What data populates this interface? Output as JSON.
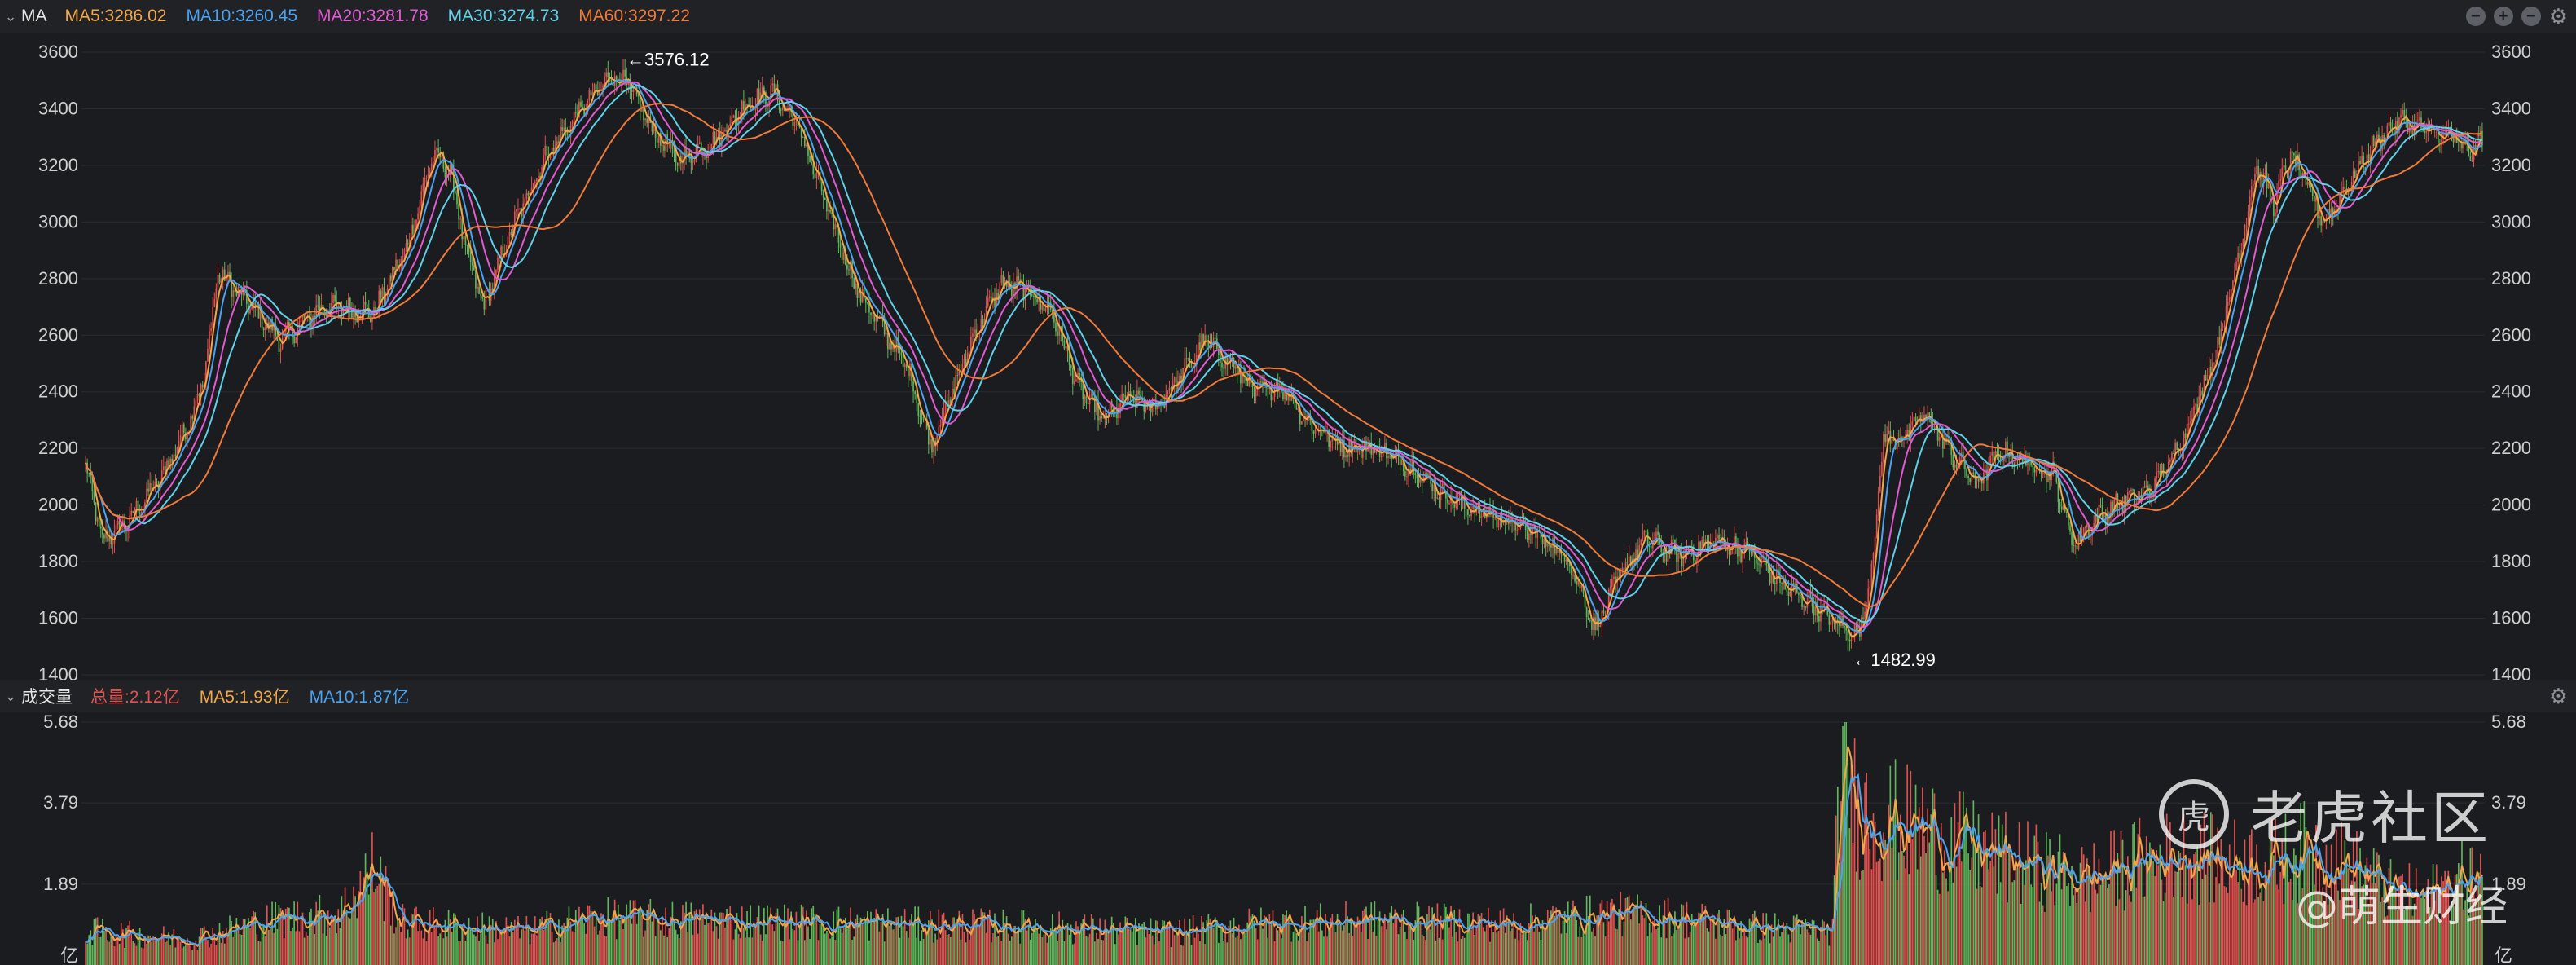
{
  "price_panel": {
    "name": "MA",
    "legend": [
      {
        "label": "MA5:3286.02",
        "color": "#f0a64a"
      },
      {
        "label": "MA10:3260.45",
        "color": "#4aa3f0"
      },
      {
        "label": "MA20:3281.78",
        "color": "#e05bd0"
      },
      {
        "label": "MA30:3274.73",
        "color": "#5fd0e8"
      },
      {
        "label": "MA60:3297.22",
        "color": "#f07a3a"
      }
    ],
    "high_marker": "←3576.12",
    "low_marker": "←1482.99"
  },
  "volume_panel": {
    "name": "成交量",
    "legend": [
      {
        "label": "总量:2.12亿",
        "color": "#e0524f"
      },
      {
        "label": "MA5:1.93亿",
        "color": "#f0a64a"
      },
      {
        "label": "MA10:1.87亿",
        "color": "#4aa3f0"
      }
    ],
    "unit": "亿"
  },
  "watermark": {
    "logo_glyph": "虎",
    "brand": "老虎社区",
    "user": "@萌生财经"
  },
  "colors": {
    "up": "#e0524f",
    "down": "#5fb85a",
    "background": "#1b1c1f",
    "grid": "#2a2c30",
    "axis_text": "#cfcfcf"
  },
  "chart_data": [
    {
      "type": "candlestick",
      "title": "MA",
      "ylim": [
        1400,
        3600
      ],
      "yticks": [
        1400,
        1600,
        1800,
        2000,
        2200,
        2400,
        2600,
        2800,
        3000,
        3200,
        3400,
        3600
      ],
      "annotations": [
        {
          "label": "3576.12",
          "value": 3576.12
        },
        {
          "label": "1482.99",
          "value": 1482.99
        }
      ],
      "series": [
        {
          "name": "MA5",
          "value": 3286.02
        },
        {
          "name": "MA10",
          "value": 3260.45
        },
        {
          "name": "MA20",
          "value": 3281.78
        },
        {
          "name": "MA30",
          "value": 3274.73
        },
        {
          "name": "MA60",
          "value": 3297.22
        }
      ],
      "close_path": [
        [
          0,
          2140
        ],
        [
          10,
          1870
        ],
        [
          25,
          1940
        ],
        [
          45,
          2100
        ],
        [
          60,
          2280
        ],
        [
          70,
          2450
        ],
        [
          78,
          2820
        ],
        [
          95,
          2720
        ],
        [
          115,
          2580
        ],
        [
          140,
          2700
        ],
        [
          170,
          2680
        ],
        [
          190,
          2920
        ],
        [
          205,
          3240
        ],
        [
          215,
          3180
        ],
        [
          225,
          2880
        ],
        [
          235,
          2700
        ],
        [
          250,
          2960
        ],
        [
          270,
          3220
        ],
        [
          290,
          3380
        ],
        [
          310,
          3520
        ],
        [
          320,
          3480
        ],
        [
          335,
          3320
        ],
        [
          350,
          3220
        ],
        [
          370,
          3280
        ],
        [
          390,
          3420
        ],
        [
          405,
          3460
        ],
        [
          420,
          3340
        ],
        [
          440,
          3000
        ],
        [
          455,
          2760
        ],
        [
          470,
          2620
        ],
        [
          485,
          2480
        ],
        [
          498,
          2210
        ],
        [
          510,
          2380
        ],
        [
          525,
          2620
        ],
        [
          540,
          2780
        ],
        [
          555,
          2760
        ],
        [
          570,
          2680
        ],
        [
          585,
          2420
        ],
        [
          600,
          2300
        ],
        [
          615,
          2380
        ],
        [
          630,
          2340
        ],
        [
          645,
          2450
        ],
        [
          660,
          2580
        ],
        [
          675,
          2500
        ],
        [
          690,
          2400
        ],
        [
          705,
          2420
        ],
        [
          720,
          2300
        ],
        [
          740,
          2210
        ],
        [
          760,
          2200
        ],
        [
          780,
          2140
        ],
        [
          800,
          2040
        ],
        [
          820,
          1980
        ],
        [
          840,
          1940
        ],
        [
          860,
          1880
        ],
        [
          875,
          1800
        ],
        [
          890,
          1560
        ],
        [
          905,
          1760
        ],
        [
          920,
          1880
        ],
        [
          940,
          1820
        ],
        [
          960,
          1870
        ],
        [
          980,
          1840
        ],
        [
          1000,
          1720
        ],
        [
          1020,
          1640
        ],
        [
          1035,
          1570
        ],
        [
          1045,
          1540
        ],
        [
          1052,
          1720
        ],
        [
          1060,
          2230
        ],
        [
          1072,
          2240
        ],
        [
          1085,
          2320
        ],
        [
          1100,
          2180
        ],
        [
          1115,
          2080
        ],
        [
          1130,
          2190
        ],
        [
          1145,
          2150
        ],
        [
          1160,
          2110
        ],
        [
          1172,
          1860
        ],
        [
          1185,
          1950
        ],
        [
          1200,
          2010
        ],
        [
          1215,
          2040
        ],
        [
          1230,
          2160
        ],
        [
          1245,
          2360
        ],
        [
          1258,
          2580
        ],
        [
          1270,
          2900
        ],
        [
          1280,
          3200
        ],
        [
          1290,
          3060
        ],
        [
          1300,
          3240
        ],
        [
          1310,
          3120
        ],
        [
          1320,
          3000
        ],
        [
          1335,
          3140
        ],
        [
          1350,
          3280
        ],
        [
          1365,
          3360
        ],
        [
          1380,
          3320
        ],
        [
          1395,
          3300
        ],
        [
          1405,
          3240
        ],
        [
          1412,
          3290
        ]
      ],
      "n_candles": 1414
    },
    {
      "type": "bar",
      "title": "成交量",
      "unit": "亿",
      "ylim": [
        0,
        5.68
      ],
      "yticks": [
        1.89,
        3.79,
        5.68
      ],
      "series": [
        {
          "name": "总量",
          "value": 2.12
        },
        {
          "name": "MA5",
          "value": 1.93
        },
        {
          "name": "MA10",
          "value": 1.87
        }
      ],
      "volume_path": [
        [
          0,
          0.8
        ],
        [
          60,
          0.6
        ],
        [
          110,
          1.05
        ],
        [
          150,
          1.2
        ],
        [
          170,
          2.3
        ],
        [
          185,
          1.0
        ],
        [
          260,
          0.8
        ],
        [
          300,
          1.1
        ],
        [
          360,
          1.05
        ],
        [
          420,
          1.0
        ],
        [
          480,
          0.95
        ],
        [
          560,
          0.9
        ],
        [
          640,
          0.75
        ],
        [
          690,
          0.95
        ],
        [
          760,
          1.05
        ],
        [
          840,
          0.95
        ],
        [
          900,
          1.2
        ],
        [
          940,
          1.1
        ],
        [
          980,
          0.9
        ],
        [
          1030,
          0.8
        ],
        [
          1035,
          4.9
        ],
        [
          1045,
          3.6
        ],
        [
          1080,
          3.2
        ],
        [
          1120,
          2.6
        ],
        [
          1150,
          2.3
        ],
        [
          1180,
          2.0
        ],
        [
          1210,
          2.4
        ],
        [
          1240,
          2.6
        ],
        [
          1260,
          2.4
        ],
        [
          1290,
          2.4
        ],
        [
          1310,
          2.7
        ],
        [
          1340,
          2.2
        ],
        [
          1360,
          1.7
        ],
        [
          1380,
          1.6
        ],
        [
          1400,
          2.0
        ],
        [
          1412,
          2.1
        ]
      ]
    }
  ]
}
